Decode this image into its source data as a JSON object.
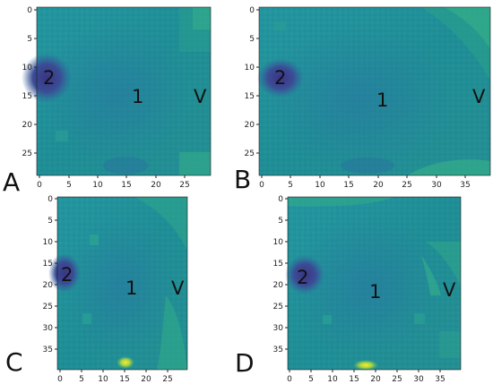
{
  "colors": {
    "base": "#1f8f93",
    "dark_blue": "#2c6aa0",
    "blue_patch": "#2f5aa3",
    "purple": "#3a3a8f",
    "green_light": "#2aa887",
    "yellow_green": "#9ccf3a",
    "yellow": "#e6e83a"
  },
  "panels": [
    {
      "letter": "A",
      "markers": [
        "2",
        "1",
        "V"
      ],
      "x_ticks": [
        "0",
        "5",
        "10",
        "15",
        "20",
        "25"
      ],
      "y_ticks": [
        "0",
        "5",
        "10",
        "15",
        "20",
        "25"
      ],
      "x_range": [
        0,
        29
      ],
      "y_range": [
        0,
        29
      ]
    },
    {
      "letter": "B",
      "markers": [
        "2",
        "1",
        "V"
      ],
      "x_ticks": [
        "0",
        "5",
        "10",
        "15",
        "20",
        "25",
        "30",
        "35"
      ],
      "y_ticks": [
        "0",
        "5",
        "10",
        "15",
        "20",
        "25"
      ],
      "x_range": [
        0,
        39
      ],
      "y_range": [
        0,
        29
      ]
    },
    {
      "letter": "C",
      "markers": [
        "2",
        "1",
        "V"
      ],
      "x_ticks": [
        "0",
        "5",
        "10",
        "15",
        "20",
        "25"
      ],
      "y_ticks": [
        "0",
        "5",
        "10",
        "15",
        "20",
        "25",
        "30",
        "35"
      ],
      "x_range": [
        0,
        29
      ],
      "y_range": [
        0,
        39
      ]
    },
    {
      "letter": "D",
      "markers": [
        "2",
        "1",
        "V"
      ],
      "x_ticks": [
        "0",
        "5",
        "10",
        "15",
        "20",
        "25",
        "30",
        "35"
      ],
      "y_ticks": [
        "0",
        "5",
        "10",
        "15",
        "20",
        "25",
        "30",
        "35"
      ],
      "x_range": [
        0,
        39
      ],
      "y_range": [
        0,
        39
      ]
    }
  ]
}
